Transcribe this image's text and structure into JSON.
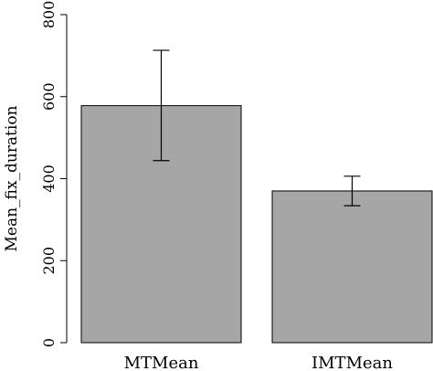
{
  "chart_data": {
    "type": "bar",
    "categories": [
      "MTMean",
      "IMTMean"
    ],
    "values": [
      578,
      370
    ],
    "error_low": [
      444,
      334
    ],
    "error_high": [
      713,
      406
    ],
    "ylabel": "Mean_fix_duration",
    "xlabel": "",
    "ylim": [
      0,
      800
    ],
    "yticks": [
      "0",
      "200",
      "400",
      "600",
      "800"
    ],
    "bar_color": "#a6a6a6",
    "grid": false
  }
}
